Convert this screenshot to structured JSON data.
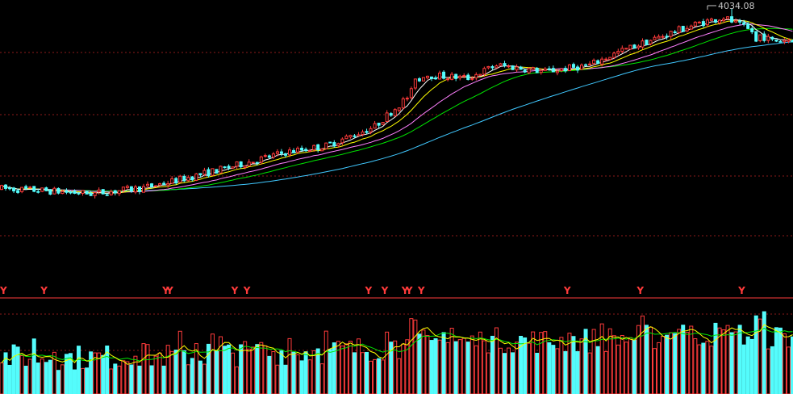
{
  "chart_data": {
    "type": "candlestick",
    "grid": true,
    "ylim": [
      3400,
      4050
    ],
    "peak_label": "4034.08",
    "marker_text": "Y",
    "marker_indices": [
      0,
      10,
      40,
      41,
      57,
      60,
      90,
      94,
      99,
      100,
      103,
      139,
      157,
      182
    ],
    "colors": {
      "background": "#000000",
      "up": "#ff3b3b",
      "down": "#54fcfc",
      "grid": "#8b1a1a",
      "separator": "#c0c0c0",
      "ma5": "#ffffff",
      "ma10": "#ffff00",
      "ma20": "#ff80ff",
      "ma30": "#00e600",
      "ma60": "#40c8ff",
      "vol_ma5": "#ffff00",
      "vol_ma10": "#00e600",
      "marker": "#ff3b3b",
      "peak_label": "#c8c8c8"
    },
    "volume_ylim": [
      0,
      100
    ]
  }
}
